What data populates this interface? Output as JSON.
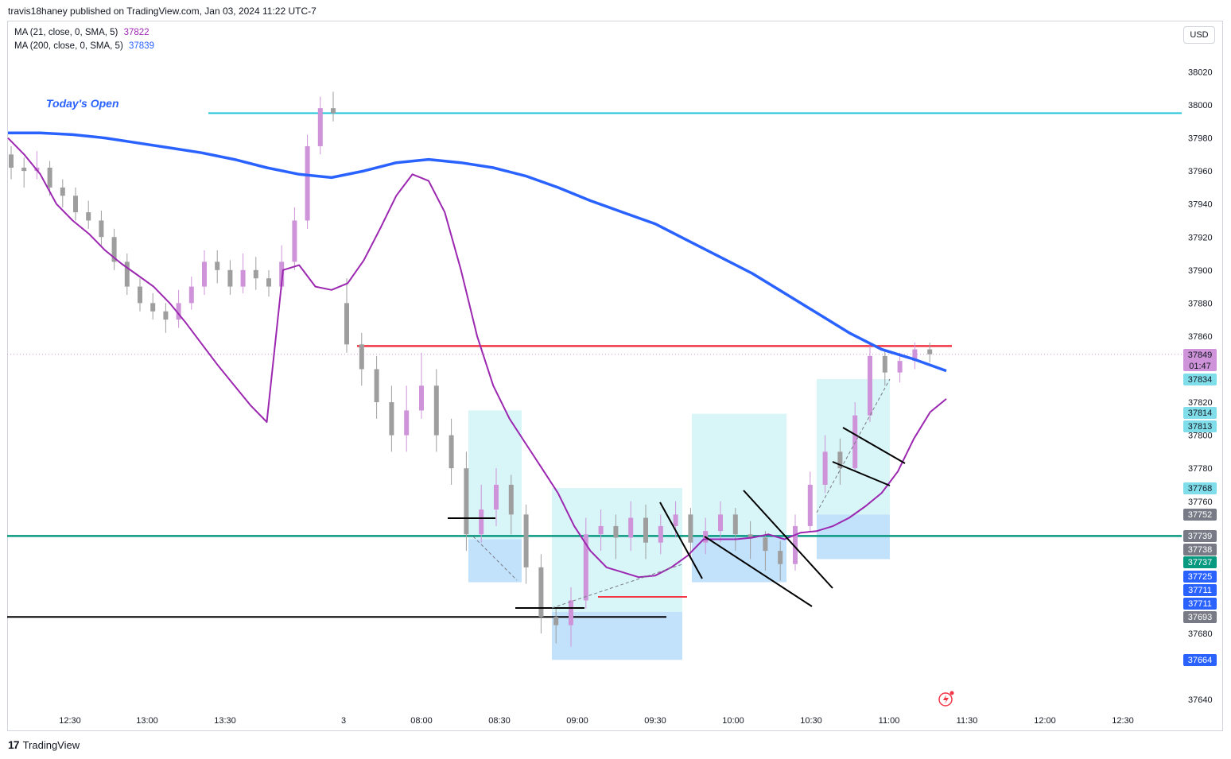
{
  "header": {
    "publisher_line": "travis18haney published on TradingView.com, Jan 03, 2024 11:22 UTC-7"
  },
  "legend": [
    {
      "label": "MA (21, close, 0, SMA, 5)",
      "value": "37822",
      "color": "#9c27b0"
    },
    {
      "label": "MA (200, close, 0, SMA, 5)",
      "value": "37839",
      "color": "#2962ff"
    }
  ],
  "currency_button": "USD",
  "footer": {
    "brand": "TradingView",
    "logo_mark": "17"
  },
  "annotations": {
    "todays_open_label": "Today's Open"
  },
  "colors": {
    "bull_candle": "#ce93d8",
    "bear_candle": "#9e9e9e",
    "ma21": "#9c27b0",
    "ma200": "#2962ff",
    "todays_open_line": "#26c6da",
    "resistance_line": "#f23645",
    "support_line": "#089981"
  },
  "chart_data": {
    "type": "candlestick",
    "instrument_timeframe": "5",
    "ylim": [
      37630,
      38040
    ],
    "y_ticks": [
      38020,
      38000,
      37980,
      37960,
      37940,
      37920,
      37900,
      37880,
      37860,
      37820,
      37800,
      37780,
      37760,
      37680,
      37640
    ],
    "x_ticks": [
      "12:30",
      "13:00",
      "13:30",
      "3",
      "08:00",
      "08:30",
      "09:00",
      "09:30",
      "10:00",
      "10:30",
      "11:00",
      "11:30",
      "12:00",
      "12:30"
    ],
    "price_tags": [
      {
        "value": 37849,
        "text": "37849",
        "sub": "01:47",
        "color": "#ce93d8"
      },
      {
        "value": 37834,
        "text": "37834",
        "color": "#80deea"
      },
      {
        "value": 37814,
        "text": "37814",
        "color": "#80deea"
      },
      {
        "value": 37813,
        "text": "37813",
        "color": "#80deea"
      },
      {
        "value": 37768,
        "text": "37768",
        "color": "#80deea"
      },
      {
        "value": 37752,
        "text": "37752",
        "color": "#787b86"
      },
      {
        "value": 37739,
        "text": "37739",
        "color": "#787b86"
      },
      {
        "value": 37738,
        "text": "37738",
        "color": "#787b86"
      },
      {
        "value": 37737,
        "text": "37737",
        "color": "#089981"
      },
      {
        "value": 37725,
        "text": "37725",
        "color": "#2962ff"
      },
      {
        "value": 37711,
        "text": "37711",
        "color": "#2962ff"
      },
      {
        "value": 37711,
        "text": "37711",
        "color": "#2962ff"
      },
      {
        "value": 37693,
        "text": "37693",
        "color": "#787b86"
      },
      {
        "value": 37664,
        "text": "37664",
        "color": "#2962ff"
      }
    ],
    "horizontal_lines": [
      {
        "name": "todays-open",
        "price": 37995,
        "color": "#26c6da"
      },
      {
        "name": "resistance",
        "price": 37854,
        "color": "#f23645"
      },
      {
        "name": "support",
        "price": 37739,
        "color": "#089981"
      },
      {
        "name": "lower-level",
        "price": 37690,
        "color": "#000000"
      }
    ],
    "ma21": [
      37980,
      37970,
      37958,
      37940,
      37930,
      37922,
      37912,
      37904,
      37897,
      37890,
      37880,
      37868,
      37855,
      37842,
      37830,
      37818,
      37808,
      37900,
      37903,
      37890,
      37888,
      37892,
      37906,
      37925,
      37945,
      37958,
      37954,
      37935,
      37900,
      37860,
      37830,
      37810,
      37795,
      37780,
      37765,
      37745,
      37730,
      37720,
      37717,
      37714,
      37715,
      37720,
      37727,
      37737,
      37737,
      37737,
      37738,
      37740,
      37737,
      37741,
      37742,
      37745,
      37750,
      37757,
      37765,
      37778,
      37798,
      37814,
      37822
    ],
    "ma200": [
      37983,
      37983,
      37982,
      37980,
      37977,
      37974,
      37971,
      37967,
      37962,
      37958,
      37956,
      37960,
      37965,
      37967,
      37965,
      37962,
      37957,
      37950,
      37942,
      37935,
      37928,
      37918,
      37908,
      37898,
      37886,
      37874,
      37862,
      37852,
      37846,
      37839
    ],
    "candles": [
      [
        37970,
        37962,
        37975,
        37955
      ],
      [
        37962,
        37960,
        37968,
        37950
      ],
      [
        37960,
        37962,
        37972,
        37955
      ],
      [
        37962,
        37950,
        37966,
        37945
      ],
      [
        37950,
        37945,
        37955,
        37938
      ],
      [
        37945,
        37935,
        37950,
        37930
      ],
      [
        37935,
        37930,
        37942,
        37925
      ],
      [
        37930,
        37920,
        37936,
        37915
      ],
      [
        37920,
        37905,
        37925,
        37900
      ],
      [
        37905,
        37890,
        37910,
        37885
      ],
      [
        37890,
        37880,
        37895,
        37875
      ],
      [
        37880,
        37875,
        37886,
        37870
      ],
      [
        37875,
        37870,
        37880,
        37862
      ],
      [
        37870,
        37880,
        37888,
        37865
      ],
      [
        37880,
        37890,
        37896,
        37876
      ],
      [
        37890,
        37905,
        37912,
        37885
      ],
      [
        37905,
        37900,
        37912,
        37892
      ],
      [
        37900,
        37890,
        37906,
        37885
      ],
      [
        37890,
        37900,
        37910,
        37886
      ],
      [
        37900,
        37895,
        37908,
        37888
      ],
      [
        37895,
        37890,
        37900,
        37884
      ],
      [
        37890,
        37905,
        37915,
        37888
      ],
      [
        37905,
        37930,
        37938,
        37900
      ],
      [
        37930,
        37975,
        37982,
        37925
      ],
      [
        37975,
        37998,
        38005,
        37970
      ],
      [
        37998,
        37995,
        38008,
        37990
      ],
      [
        37880,
        37855,
        37895,
        37850
      ],
      [
        37855,
        37840,
        37862,
        37830
      ],
      [
        37840,
        37820,
        37848,
        37810
      ],
      [
        37820,
        37800,
        37830,
        37790
      ],
      [
        37800,
        37815,
        37830,
        37790
      ],
      [
        37815,
        37830,
        37850,
        37810
      ],
      [
        37830,
        37800,
        37840,
        37790
      ],
      [
        37800,
        37780,
        37810,
        37770
      ],
      [
        37780,
        37740,
        37790,
        37730
      ],
      [
        37740,
        37755,
        37770,
        37735
      ],
      [
        37755,
        37770,
        37780,
        37745
      ],
      [
        37770,
        37752,
        37776,
        37740
      ],
      [
        37752,
        37720,
        37758,
        37710
      ],
      [
        37720,
        37690,
        37728,
        37680
      ],
      [
        37690,
        37685,
        37696,
        37674
      ],
      [
        37685,
        37700,
        37708,
        37672
      ],
      [
        37700,
        37740,
        37750,
        37695
      ],
      [
        37740,
        37745,
        37755,
        37730
      ],
      [
        37745,
        37738,
        37752,
        37725
      ],
      [
        37738,
        37750,
        37760,
        37730
      ],
      [
        37750,
        37735,
        37758,
        37725
      ],
      [
        37735,
        37745,
        37752,
        37728
      ],
      [
        37745,
        37752,
        37760,
        37738
      ],
      [
        37752,
        37735,
        37756,
        37725
      ],
      [
        37735,
        37742,
        37750,
        37728
      ],
      [
        37742,
        37752,
        37760,
        37735
      ],
      [
        37752,
        37740,
        37756,
        37730
      ],
      [
        37740,
        37738,
        37748,
        37725
      ],
      [
        37738,
        37730,
        37742,
        37718
      ],
      [
        37730,
        37722,
        37736,
        37712
      ],
      [
        37722,
        37745,
        37752,
        37718
      ],
      [
        37745,
        37770,
        37778,
        37742
      ],
      [
        37770,
        37790,
        37800,
        37765
      ],
      [
        37790,
        37780,
        37798,
        37770
      ],
      [
        37780,
        37812,
        37820,
        37778
      ],
      [
        37812,
        37848,
        37854,
        37808
      ],
      [
        37848,
        37838,
        37852,
        37830
      ],
      [
        37838,
        37845,
        37850,
        37832
      ],
      [
        37845,
        37852,
        37856,
        37840
      ],
      [
        37852,
        37849,
        37856,
        37844
      ]
    ]
  }
}
